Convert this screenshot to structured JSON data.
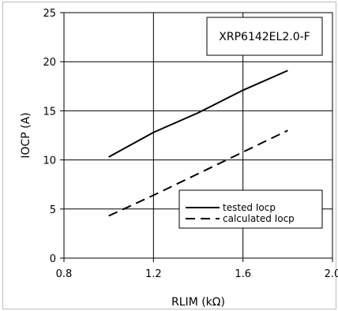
{
  "chart_data": {
    "type": "line",
    "xlabel": "RLIM (kΩ)",
    "ylabel": "IOCP (A)",
    "xlim": [
      0.8,
      2.0
    ],
    "ylim": [
      0,
      25
    ],
    "xticks": [
      0.8,
      1.2,
      1.6,
      2.0
    ],
    "xtick_labels": [
      "0.8",
      "1.2",
      "1.6",
      "2.0"
    ],
    "yticks": [
      0,
      5,
      10,
      15,
      20,
      25
    ],
    "ytick_labels": [
      "0",
      "5",
      "10",
      "15",
      "20",
      "25"
    ],
    "grid": true,
    "legend_position": "lower-right",
    "annotation": "XRP6142EL2.0-F",
    "series": [
      {
        "name": "tested Iocp",
        "style": "solid",
        "x": [
          1.0,
          1.2,
          1.4,
          1.6,
          1.8
        ],
        "y": [
          10.3,
          12.8,
          14.8,
          17.1,
          19.1
        ]
      },
      {
        "name": "calculated Iocp",
        "style": "dashed",
        "x": [
          1.0,
          1.2,
          1.4,
          1.6,
          1.8
        ],
        "y": [
          4.3,
          6.4,
          8.6,
          10.8,
          13.0
        ]
      }
    ]
  }
}
